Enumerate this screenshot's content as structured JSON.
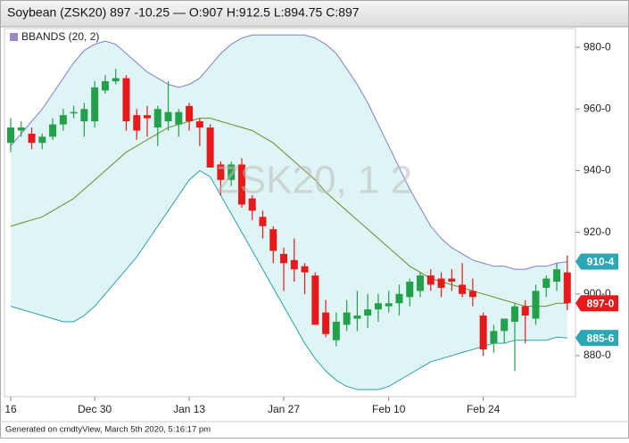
{
  "chart_data": {
    "type": "candlestick",
    "title": "Soybean (ZSK20) 897 -10.25 — O:907 H:912.5 L:894.75 C:897",
    "watermark": "ZSK20, 1 2",
    "footer": "Generated on cmdtyView, March 5th 2020, 5:16:17 pm",
    "categories": [
      "16",
      null,
      null,
      null,
      null,
      null,
      null,
      null,
      "Dec 30",
      null,
      null,
      null,
      null,
      null,
      null,
      null,
      null,
      "Jan 13",
      null,
      null,
      null,
      null,
      null,
      null,
      null,
      null,
      "Jan 27",
      null,
      null,
      null,
      null,
      null,
      null,
      null,
      null,
      null,
      "Feb 10",
      null,
      null,
      null,
      null,
      null,
      null,
      null,
      null,
      "Feb 24",
      null,
      null,
      null,
      null,
      null,
      null,
      null,
      null
    ],
    "open": [
      949,
      953,
      952,
      949,
      951,
      955,
      959,
      956,
      956,
      966,
      969,
      970,
      958,
      958,
      954,
      956,
      955,
      961,
      956,
      954,
      942,
      937,
      942,
      931,
      925,
      921,
      913,
      911,
      909,
      906,
      894,
      885,
      890,
      892,
      893,
      895,
      896,
      897,
      899,
      901,
      906,
      905,
      905,
      903,
      901,
      893,
      884,
      888,
      891,
      896,
      892,
      902,
      904,
      907
    ],
    "high": [
      957,
      956,
      954,
      952,
      957,
      960,
      961,
      962,
      969,
      971,
      973,
      971,
      960,
      961,
      961,
      969,
      960,
      962,
      957,
      955,
      943,
      943,
      944,
      932,
      927,
      922,
      915,
      918,
      910,
      907,
      898,
      894,
      898,
      901,
      900,
      900,
      901,
      903,
      905,
      907,
      908,
      907,
      908,
      910,
      905,
      894,
      890,
      892,
      897,
      898,
      903,
      906,
      910,
      912.5
    ],
    "low": [
      946,
      951,
      947,
      947,
      950,
      953,
      957,
      951,
      954,
      965,
      968,
      953,
      950,
      951,
      948,
      953,
      951,
      953,
      948,
      941,
      932,
      935,
      928,
      924,
      918,
      910,
      901,
      904,
      900,
      890,
      886,
      883,
      888,
      888,
      889,
      891,
      894,
      893,
      896,
      899,
      901,
      899,
      901,
      899,
      896,
      880,
      881,
      884,
      875,
      884,
      890,
      899,
      901,
      894.75
    ],
    "close": [
      954,
      954,
      949,
      951,
      955,
      958,
      959,
      960,
      967,
      969,
      970,
      956,
      953,
      957,
      960,
      959,
      959,
      956,
      954,
      941,
      937,
      942,
      929,
      927,
      922,
      914,
      910,
      908,
      907,
      890,
      887,
      891,
      894,
      893,
      895,
      897,
      897,
      900,
      904,
      906,
      903,
      902,
      904,
      900,
      899,
      882,
      888,
      892,
      896,
      893,
      901,
      905,
      908,
      897
    ],
    "up_color": "#22a04a",
    "down_color": "#e8191b",
    "bands": {
      "name": "BBANDS (20, 2)",
      "color": "#9a86c8",
      "fill": "#dff4f4",
      "upper_color": "#7f7fd0",
      "middle_color": "#6e8a2a",
      "lower_color": "#2aa0b0",
      "upper": [
        948,
        952,
        956,
        960,
        965,
        970,
        975,
        979,
        981,
        982,
        981,
        978,
        975,
        972,
        970,
        968,
        967,
        968,
        970,
        974,
        978,
        981,
        983,
        984,
        984,
        984,
        984,
        984,
        984,
        983,
        981,
        978,
        973,
        968,
        962,
        955,
        948,
        941,
        934,
        928,
        922,
        918,
        915,
        913,
        911,
        910,
        909,
        909,
        908,
        908,
        909,
        909,
        910,
        910.5
      ],
      "middle": [
        922,
        923,
        924,
        925,
        927,
        929,
        931,
        934,
        937,
        940,
        943,
        946,
        948,
        950,
        952,
        954,
        955,
        956,
        957,
        957,
        956,
        955,
        954,
        953,
        951,
        949,
        946,
        943,
        940,
        937,
        933,
        930,
        927,
        924,
        921,
        918,
        915,
        912,
        909,
        907,
        905,
        904,
        903,
        902,
        901,
        900,
        899,
        898,
        897,
        896,
        896,
        896,
        897,
        897
      ],
      "lower": [
        896,
        895,
        894,
        893,
        892,
        891,
        891,
        893,
        896,
        900,
        904,
        908,
        912,
        917,
        922,
        927,
        932,
        937,
        940,
        938,
        932,
        926,
        920,
        914,
        908,
        902,
        896,
        890,
        884,
        879,
        875,
        872,
        870,
        869,
        869,
        869,
        870,
        872,
        874,
        876,
        878,
        879,
        880,
        881,
        882,
        883,
        884,
        884,
        885,
        885,
        885,
        885,
        886,
        885.75
      ]
    },
    "badges": [
      {
        "value": 910.5,
        "label": "910-4",
        "color": "#2ea6b5"
      },
      {
        "value": 897,
        "label": "897-0",
        "color": "#e8191b"
      },
      {
        "value": 885.75,
        "label": "885-6",
        "color": "#2ea6b5"
      }
    ],
    "ylim": [
      866.7,
      986.1
    ],
    "yticks": [
      {
        "value": 880,
        "label": "880-0"
      },
      {
        "value": 900,
        "label": "900-0"
      },
      {
        "value": 920,
        "label": "920-0"
      },
      {
        "value": 940,
        "label": "940-0"
      },
      {
        "value": 960,
        "label": "960-0"
      },
      {
        "value": 980,
        "label": "980-0"
      }
    ],
    "grid": false
  }
}
